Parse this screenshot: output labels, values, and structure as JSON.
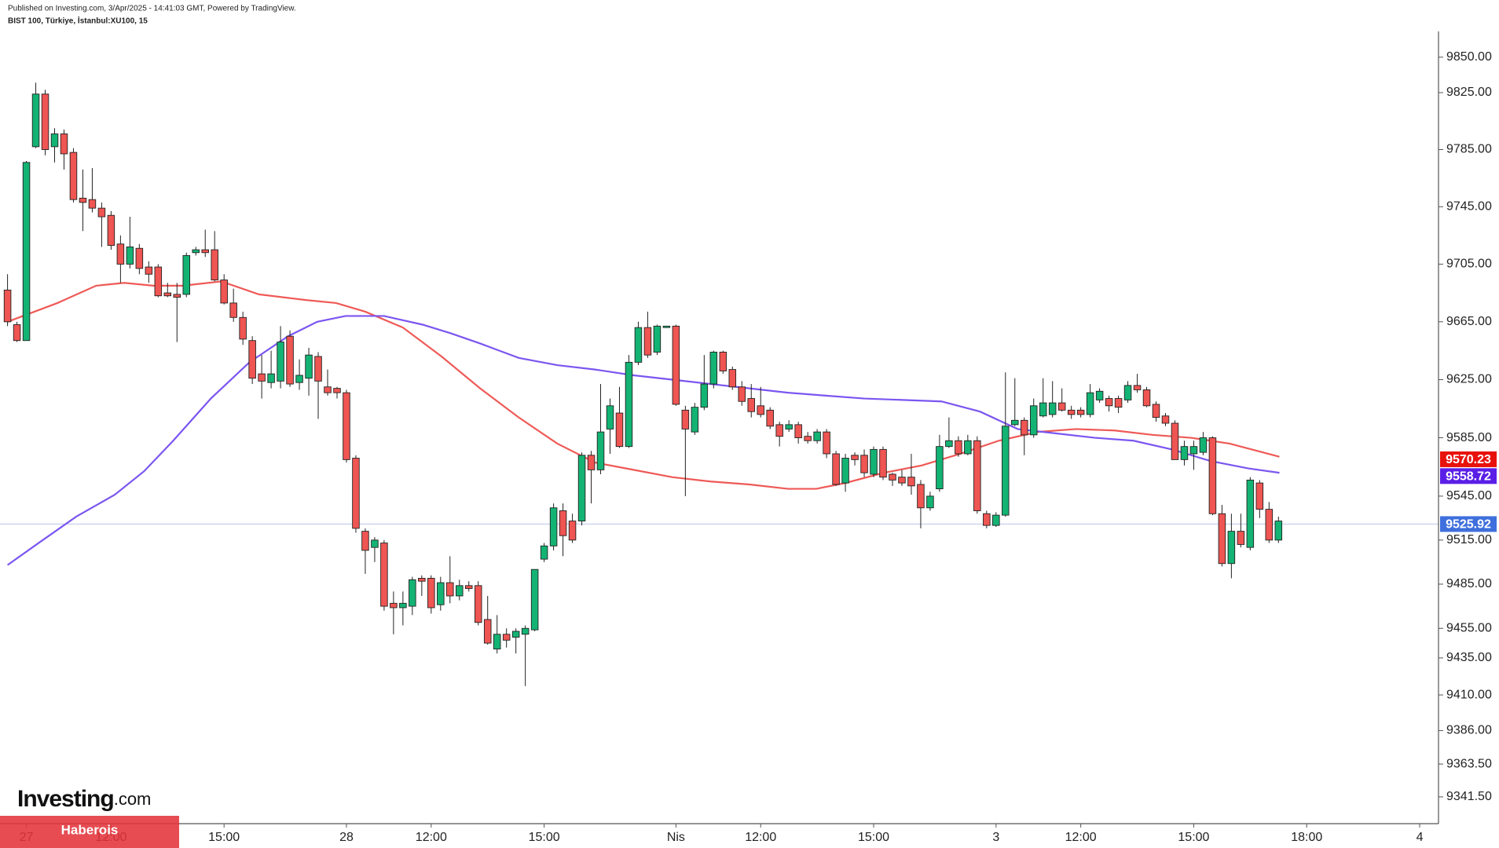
{
  "chart_data": {
    "type": "candlestick",
    "subtitle": "Published on Investing.com, 3/Apr/2025 - 14:41:03 GMT, Powered by TradingView.",
    "title": "BIST 100, Türkiye, İstanbul:XU100, 15",
    "logo": "Investing",
    "logo_suffix": ".com",
    "watermark": "Haberois",
    "log_y": true,
    "up_color": "#13b374",
    "down_color": "#ef5552",
    "xlim": [
      -0.8,
      152
    ],
    "ylim": [
      9323.6,
      9868.2
    ],
    "xticks": [
      {
        "value": 2,
        "label": "27"
      },
      {
        "value": 11,
        "label": "12:00"
      },
      {
        "value": 23,
        "label": "15:00"
      },
      {
        "value": 36,
        "label": "28"
      },
      {
        "value": 45,
        "label": "12:00"
      },
      {
        "value": 57,
        "label": "15:00"
      },
      {
        "value": 71,
        "label": "Nis"
      },
      {
        "value": 80,
        "label": "12:00"
      },
      {
        "value": 92,
        "label": "15:00"
      },
      {
        "value": 105,
        "label": "3"
      },
      {
        "value": 114,
        "label": "12:00"
      },
      {
        "value": 126,
        "label": "15:00"
      },
      {
        "value": 138,
        "label": "18:00"
      },
      {
        "value": 150,
        "label": "4"
      }
    ],
    "yticks": [
      {
        "value": 9850,
        "label": "9850.00"
      },
      {
        "value": 9825,
        "label": "9825.00"
      },
      {
        "value": 9785,
        "label": "9785.00"
      },
      {
        "value": 9745,
        "label": "9745.00"
      },
      {
        "value": 9705,
        "label": "9705.00"
      },
      {
        "value": 9665,
        "label": "9665.00"
      },
      {
        "value": 9625,
        "label": "9625.00"
      },
      {
        "value": 9585,
        "label": "9585.00"
      },
      {
        "value": 9545,
        "label": "9545.00"
      },
      {
        "value": 9515,
        "label": "9515.00"
      },
      {
        "value": 9485,
        "label": "9485.00"
      },
      {
        "value": 9455,
        "label": "9455.00"
      },
      {
        "value": 9435,
        "label": "9435.00"
      },
      {
        "value": 9410,
        "label": "9410.00"
      },
      {
        "value": 9386,
        "label": "9386.00"
      },
      {
        "value": 9363.5,
        "label": "9363.50"
      },
      {
        "value": 9341.5,
        "label": "9341.50"
      }
    ],
    "x": [
      0,
      1,
      2,
      3,
      4,
      5,
      6,
      7,
      8,
      9,
      10,
      11,
      12,
      13,
      14,
      15,
      16,
      17,
      18,
      19,
      20,
      21,
      22,
      23,
      24,
      25,
      26,
      27,
      28,
      29,
      30,
      31,
      32,
      33,
      34,
      35,
      36,
      37,
      38,
      39,
      40,
      41,
      42,
      43,
      44,
      45,
      46,
      47,
      48,
      49,
      50,
      51,
      52,
      53,
      54,
      55,
      56,
      57,
      58,
      59,
      60,
      61,
      62,
      63,
      64,
      65,
      66,
      67,
      68,
      69,
      70,
      71,
      72,
      73,
      74,
      75,
      76,
      77,
      78,
      79,
      80,
      81,
      82,
      83,
      84,
      85,
      86,
      87,
      88,
      89,
      90,
      91,
      92,
      93,
      94,
      95,
      96,
      97,
      98,
      99,
      100,
      101,
      102,
      103,
      104,
      105,
      106,
      107,
      108,
      109,
      110,
      111,
      112,
      113,
      114,
      115,
      116,
      117,
      118,
      119,
      120,
      121,
      122,
      123,
      124,
      125,
      126,
      127,
      128,
      129,
      130,
      131,
      132,
      133,
      134,
      135
    ],
    "open": [
      9687,
      9663,
      9652,
      9787,
      9824,
      9787,
      9796,
      9783,
      9751,
      9750,
      9744,
      9739,
      9719,
      9705,
      9716,
      9703,
      9703,
      9685,
      9684,
      9684,
      9713,
      9715,
      9715,
      9694,
      9678,
      9668,
      9652,
      9629,
      9623,
      9624,
      9655,
      9623,
      9626,
      9641,
      9620,
      9619,
      9616,
      9571,
      9521,
      9510,
      9513,
      9472,
      9469,
      9470,
      9489,
      9489,
      9471,
      9486,
      9477,
      9484,
      9484,
      9461,
      9441,
      9451,
      9449,
      9451,
      9454,
      9502,
      9511,
      9535,
      9528,
      9528,
      9573,
      9563,
      9591,
      9602,
      9579,
      9637,
      9661,
      9644,
      9661,
      9662,
      9604,
      9589,
      9606,
      9622,
      9644,
      9632,
      9620,
      9612,
      9607,
      9604,
      9594,
      9591,
      9594,
      9586,
      9583,
      9589,
      9574,
      9554,
      9573,
      9573,
      9560,
      9577,
      9560,
      9558,
      9558,
      9553,
      9537,
      9550,
      9579,
      9583,
      9574,
      9583,
      9533,
      9525,
      9532,
      9594,
      9597,
      9587,
      9600,
      9601,
      9609,
      9604,
      9604,
      9601,
      9611,
      9612,
      9612,
      9611,
      9621,
      9618,
      9608,
      9600,
      9595,
      9570,
      9574,
      9575,
      9585,
      9533,
      9499,
      9521,
      9510,
      9554,
      9536,
      9515
    ],
    "high": [
      9698,
      9665,
      9777,
      9832,
      9827,
      9800,
      9799,
      9786,
      9771,
      9772,
      9748,
      9742,
      9725,
      9738,
      9719,
      9707,
      9705,
      9692,
      9692,
      9713,
      9717,
      9729,
      9728,
      9698,
      9688,
      9672,
      9655,
      9642,
      9645,
      9662,
      9659,
      9639,
      9647,
      9644,
      9632,
      9620,
      9618,
      9573,
      9523,
      9517,
      9515,
      9480,
      9480,
      9490,
      9491,
      9491,
      9490,
      9504,
      9488,
      9487,
      9487,
      9477,
      9464,
      9455,
      9455,
      9457,
      9495,
      9513,
      9540,
      9540,
      9533,
      9575,
      9576,
      9622,
      9612,
      9620,
      9642,
      9665,
      9672,
      9663,
      9662,
      9663,
      9607,
      9609,
      9642,
      9645,
      9645,
      9634,
      9624,
      9622,
      9620,
      9606,
      9596,
      9597,
      9596,
      9589,
      9591,
      9591,
      9576,
      9574,
      9575,
      9577,
      9579,
      9579,
      9561,
      9563,
      9574,
      9556,
      9548,
      9587,
      9599,
      9586,
      9587,
      9586,
      9535,
      9534,
      9630,
      9626,
      9599,
      9612,
      9626,
      9624,
      9619,
      9607,
      9606,
      9622,
      9619,
      9614,
      9614,
      9624,
      9629,
      9620,
      9610,
      9602,
      9597,
      9583,
      9583,
      9589,
      9586,
      9539,
      9533,
      9533,
      9558,
      9556,
      9541,
      9531
    ],
    "low": [
      9662,
      9651,
      9652,
      9786,
      9781,
      9776,
      9771,
      9748,
      9728,
      9741,
      9717,
      9715,
      9692,
      9702,
      9698,
      9692,
      9682,
      9682,
      9651,
      9682,
      9711,
      9710,
      9693,
      9677,
      9665,
      9649,
      9622,
      9612,
      9619,
      9619,
      9620,
      9618,
      9614,
      9598,
      9614,
      9612,
      9568,
      9520,
      9492,
      9500,
      9467,
      9451,
      9457,
      9464,
      9477,
      9465,
      9467,
      9472,
      9474,
      9480,
      9457,
      9444,
      9438,
      9442,
      9438,
      9416,
      9453,
      9500,
      9508,
      9504,
      9513,
      9525,
      9540,
      9560,
      9574,
      9578,
      9578,
      9635,
      9640,
      9642,
      9661,
      9607,
      9545,
      9587,
      9604,
      9619,
      9629,
      9618,
      9607,
      9599,
      9599,
      9591,
      9579,
      9589,
      9581,
      9581,
      9581,
      9571,
      9552,
      9548,
      9566,
      9558,
      9558,
      9556,
      9552,
      9552,
      9546,
      9523,
      9535,
      9548,
      9578,
      9572,
      9573,
      9533,
      9523,
      9524,
      9531,
      9593,
      9573,
      9585,
      9599,
      9599,
      9603,
      9598,
      9599,
      9599,
      9609,
      9603,
      9602,
      9609,
      9616,
      9606,
      9596,
      9593,
      9570,
      9566,
      9563,
      9573,
      9532,
      9497,
      9489,
      9510,
      9508,
      9530,
      9513,
      9513
    ],
    "close": [
      9665,
      9652,
      9776,
      9824,
      9785,
      9796,
      9782,
      9750,
      9748,
      9744,
      9738,
      9718,
      9705,
      9717,
      9702,
      9698,
      9683,
      9683,
      9682,
      9711,
      9715,
      9713,
      9694,
      9678,
      9668,
      9653,
      9626,
      9624,
      9629,
      9651,
      9622,
      9628,
      9642,
      9624,
      9616,
      9616,
      9570,
      9523,
      9508,
      9515,
      9470,
      9469,
      9472,
      9488,
      9487,
      9469,
      9486,
      9477,
      9484,
      9482,
      9459,
      9445,
      9451,
      9447,
      9453,
      9455,
      9495,
      9511,
      9537,
      9518,
      9515,
      9573,
      9563,
      9589,
      9607,
      9579,
      9637,
      9661,
      9642,
      9662,
      9662,
      9608,
      9591,
      9606,
      9622,
      9644,
      9631,
      9620,
      9610,
      9603,
      9601,
      9593,
      9586,
      9594,
      9585,
      9583,
      9589,
      9574,
      9553,
      9571,
      9570,
      9561,
      9577,
      9558,
      9556,
      9554,
      9552,
      9537,
      9545,
      9579,
      9583,
      9574,
      9583,
      9535,
      9525,
      9532,
      9593,
      9597,
      9587,
      9607,
      9609,
      9609,
      9604,
      9601,
      9601,
      9616,
      9617,
      9607,
      9606,
      9621,
      9618,
      9607,
      9599,
      9595,
      9570,
      9579,
      9579,
      9585,
      9533,
      9499,
      9521,
      9512,
      9556,
      9536,
      9515,
      9528
    ],
    "lines": [
      {
        "color": "#ee5a57",
        "x": [
          0,
          5.3,
          9.4,
          12.4,
          15.5,
          18.6,
          22.7,
          26.7,
          31.8,
          34.9,
          38,
          42,
          46.1,
          50.2,
          54.3,
          58.4,
          62.4,
          66.5,
          70.6,
          74.7,
          78.8,
          82.9,
          85.9,
          89,
          93.1,
          97.1,
          101.2,
          105.3,
          109.4,
          113.5,
          117.6,
          121.6,
          125.7,
          129.8,
          135.1
        ],
        "values": [
          9665,
          9678,
          9690,
          9692,
          9690,
          9690,
          9693,
          9684,
          9680,
          9678,
          9672,
          9661,
          9641,
          9619,
          9599,
          9581,
          9568,
          9563,
          9558,
          9555,
          9553,
          9550,
          9550,
          9554,
          9561,
          9566,
          9574,
          9583,
          9589,
          9591,
          9590,
          9587,
          9585,
          9581,
          9572
        ]
      },
      {
        "color": "#7b56f0",
        "x": [
          0,
          3.3,
          7.3,
          11.4,
          14.5,
          17.6,
          21.6,
          25.7,
          29.8,
          32.9,
          35.9,
          40,
          44.1,
          47.1,
          50.2,
          54.3,
          58.4,
          62.4,
          66.5,
          70.6,
          74.7,
          78.8,
          82.9,
          86.9,
          91,
          95.1,
          99.2,
          103.3,
          107.3,
          111.4,
          115.5,
          119.6,
          123.7,
          127.8,
          131.8,
          135.1
        ],
        "values": [
          9498,
          9513,
          9531,
          9546,
          9562,
          9583,
          9612,
          9637,
          9655,
          9665,
          9669,
          9669,
          9663,
          9657,
          9650,
          9640,
          9635,
          9632,
          9628,
          9625,
          9622,
          9619,
          9616,
          9614,
          9612,
          9611,
          9610,
          9603,
          9591,
          9588,
          9585,
          9583,
          9577,
          9569,
          9564,
          9561
        ]
      }
    ],
    "price_labels": [
      {
        "value": 9570.23,
        "color": "#e8120c"
      },
      {
        "value": 9558.72,
        "color": "#5a1fe6"
      },
      {
        "value": 9525.92,
        "color": "#3f6fdc",
        "line_color": "#c2cbe9"
      }
    ]
  }
}
